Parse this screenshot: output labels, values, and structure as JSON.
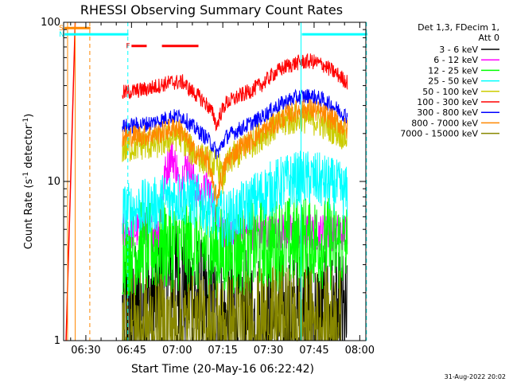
{
  "chart_data": {
    "type": "line",
    "title": "RHESSI Observing Summary Count Rates",
    "xlabel": "Start Time (20-May-16 06:22:42)",
    "ylabel_main": "Count Rate (s",
    "ylabel_sup1": "-1",
    "ylabel_mid": " detector",
    "ylabel_sup2": "-1",
    "ylabel_end": ")",
    "y_scale": "log",
    "xlim_min": [
      382.7,
      482
    ],
    "ylim": [
      1,
      100
    ],
    "x_ticks": [
      {
        "min": 390,
        "label": "06:30"
      },
      {
        "min": 405,
        "label": "06:45"
      },
      {
        "min": 420,
        "label": "07:00"
      },
      {
        "min": 435,
        "label": "07:15"
      },
      {
        "min": 450,
        "label": "07:30"
      },
      {
        "min": 465,
        "label": "07:45"
      },
      {
        "min": 480,
        "label": "08:00"
      }
    ],
    "y_ticks": [
      {
        "value": 1,
        "label": "1"
      },
      {
        "value": 10,
        "label": "10"
      },
      {
        "value": 100,
        "label": "100"
      }
    ],
    "legend_header": [
      "Det 1,3, FDecim 1,",
      "Att 0"
    ],
    "legend_position": "right",
    "series": [
      {
        "name": "3 - 6 keV",
        "color": "#000000",
        "points": [
          [
            402,
            1.4
          ],
          [
            408,
            1.5
          ],
          [
            412,
            1.8
          ],
          [
            416,
            2.2
          ],
          [
            420,
            2.4
          ],
          [
            424,
            2.0
          ],
          [
            428,
            1.6
          ],
          [
            432,
            1.4
          ],
          [
            436,
            1.3
          ],
          [
            440,
            1.4
          ],
          [
            444,
            1.3
          ],
          [
            448,
            1.35
          ],
          [
            452,
            1.3
          ],
          [
            456,
            1.3
          ],
          [
            460,
            1.35
          ],
          [
            464,
            1.3
          ],
          [
            468,
            1.3
          ],
          [
            472,
            1.3
          ],
          [
            476,
            1.3
          ]
        ],
        "noise": 0.45
      },
      {
        "name": "6 - 12 keV",
        "color": "#ff00ff",
        "points": [
          [
            402,
            4.8
          ],
          [
            406,
            4.9
          ],
          [
            410,
            5.0
          ],
          [
            414,
            5.0
          ],
          [
            416,
            11
          ],
          [
            418,
            15
          ],
          [
            420,
            12
          ],
          [
            421,
            8
          ],
          [
            422,
            12
          ],
          [
            424,
            13
          ],
          [
            426,
            9
          ],
          [
            428,
            8
          ],
          [
            430,
            9.5
          ],
          [
            432,
            7
          ],
          [
            434,
            5.5
          ],
          [
            436,
            4.2
          ],
          [
            440,
            4.6
          ],
          [
            444,
            4.8
          ],
          [
            448,
            4.8
          ],
          [
            452,
            4.8
          ],
          [
            456,
            4.8
          ],
          [
            460,
            4.8
          ],
          [
            464,
            4.8
          ],
          [
            468,
            4.8
          ],
          [
            472,
            4.8
          ],
          [
            476,
            4.8
          ]
        ],
        "noise": 0.12
      },
      {
        "name": "12 - 25 keV",
        "color": "#00ff00",
        "points": [
          [
            402,
            3.7
          ],
          [
            408,
            3.8
          ],
          [
            412,
            3.8
          ],
          [
            416,
            4.0
          ],
          [
            420,
            4.0
          ],
          [
            424,
            3.9
          ],
          [
            428,
            3.8
          ],
          [
            432,
            3.7
          ],
          [
            436,
            3.5
          ],
          [
            440,
            3.7
          ],
          [
            444,
            3.9
          ],
          [
            448,
            4.0
          ],
          [
            452,
            4.0
          ],
          [
            456,
            4.1
          ],
          [
            460,
            4.2
          ],
          [
            464,
            4.2
          ],
          [
            468,
            4.1
          ],
          [
            472,
            4.0
          ],
          [
            476,
            3.8
          ]
        ],
        "noise": 0.3
      },
      {
        "name": "25 - 50 keV",
        "color": "#00ffff",
        "points": [
          [
            402,
            6.5
          ],
          [
            408,
            6.8
          ],
          [
            412,
            7.0
          ],
          [
            416,
            7.6
          ],
          [
            420,
            8.0
          ],
          [
            424,
            7.8
          ],
          [
            428,
            7.2
          ],
          [
            432,
            6.5
          ],
          [
            435,
            5.8
          ],
          [
            438,
            6.0
          ],
          [
            442,
            6.8
          ],
          [
            446,
            7.8
          ],
          [
            450,
            8.8
          ],
          [
            454,
            9.6
          ],
          [
            458,
            10.2
          ],
          [
            462,
            10.5
          ],
          [
            466,
            10.2
          ],
          [
            470,
            9.6
          ],
          [
            474,
            8.8
          ],
          [
            476,
            8.2
          ]
        ],
        "noise": 0.18
      },
      {
        "name": "50 - 100 keV",
        "color": "#cccc00",
        "points": [
          [
            402,
            16
          ],
          [
            408,
            17
          ],
          [
            412,
            17
          ],
          [
            416,
            18
          ],
          [
            420,
            19.5
          ],
          [
            422,
            18.5
          ],
          [
            424,
            16
          ],
          [
            428,
            14
          ],
          [
            432,
            13
          ],
          [
            434,
            12
          ],
          [
            435,
            10
          ],
          [
            436,
            12
          ],
          [
            438,
            14
          ],
          [
            442,
            16
          ],
          [
            446,
            18.5
          ],
          [
            450,
            21
          ],
          [
            454,
            23
          ],
          [
            458,
            24.5
          ],
          [
            462,
            25
          ],
          [
            466,
            24
          ],
          [
            470,
            22
          ],
          [
            474,
            20
          ],
          [
            476,
            18.5
          ]
        ],
        "noise": 0.1
      },
      {
        "name": "100 - 300 keV",
        "color": "#ff0000",
        "points": [
          [
            402,
            36
          ],
          [
            406,
            37
          ],
          [
            410,
            38
          ],
          [
            414,
            40
          ],
          [
            418,
            42
          ],
          [
            422,
            42
          ],
          [
            424,
            38
          ],
          [
            428,
            33
          ],
          [
            430,
            30
          ],
          [
            432,
            26
          ],
          [
            433,
            22
          ],
          [
            434,
            26
          ],
          [
            436,
            31
          ],
          [
            440,
            34
          ],
          [
            444,
            37
          ],
          [
            448,
            41
          ],
          [
            452,
            48
          ],
          [
            456,
            53
          ],
          [
            460,
            56
          ],
          [
            464,
            57
          ],
          [
            468,
            54
          ],
          [
            472,
            48
          ],
          [
            476,
            42
          ]
        ],
        "noise": 0.05
      },
      {
        "name": "300 - 800 keV",
        "color": "#0000ff",
        "points": [
          [
            402,
            22
          ],
          [
            406,
            22.5
          ],
          [
            410,
            23
          ],
          [
            414,
            24
          ],
          [
            418,
            25.5
          ],
          [
            422,
            25.5
          ],
          [
            424,
            23
          ],
          [
            428,
            20
          ],
          [
            430,
            18.5
          ],
          [
            432,
            16.5
          ],
          [
            433,
            15
          ],
          [
            434,
            16
          ],
          [
            436,
            19
          ],
          [
            440,
            21
          ],
          [
            444,
            23
          ],
          [
            448,
            25.5
          ],
          [
            452,
            29
          ],
          [
            456,
            32
          ],
          [
            460,
            34
          ],
          [
            464,
            34.5
          ],
          [
            468,
            32.5
          ],
          [
            472,
            29
          ],
          [
            476,
            25.5
          ]
        ],
        "noise": 0.05
      },
      {
        "name": "800 - 7000 keV",
        "color": "#ff8800",
        "points": [
          [
            402,
            19
          ],
          [
            406,
            19.5
          ],
          [
            410,
            19.5
          ],
          [
            414,
            20
          ],
          [
            418,
            21.5
          ],
          [
            420,
            22
          ],
          [
            422,
            20
          ],
          [
            424,
            17
          ],
          [
            426,
            15
          ],
          [
            428,
            14.5
          ],
          [
            430,
            14
          ],
          [
            431,
            11
          ],
          [
            432,
            9
          ],
          [
            433,
            7.8
          ],
          [
            434,
            9.5
          ],
          [
            436,
            13
          ],
          [
            440,
            16
          ],
          [
            444,
            18
          ],
          [
            448,
            20.5
          ],
          [
            452,
            23
          ],
          [
            456,
            26
          ],
          [
            460,
            28
          ],
          [
            464,
            28.5
          ],
          [
            468,
            26.5
          ],
          [
            472,
            24
          ],
          [
            476,
            21
          ]
        ],
        "noise": 0.07
      },
      {
        "name": "7000 - 15000 keV",
        "color": "#888800",
        "points": [
          [
            402,
            1.2
          ],
          [
            410,
            1.2
          ],
          [
            418,
            1.2
          ],
          [
            426,
            1.2
          ],
          [
            434,
            1.2
          ],
          [
            442,
            1.25
          ],
          [
            446,
            1.3
          ],
          [
            450,
            1.3
          ],
          [
            454,
            1.35
          ],
          [
            458,
            1.3
          ],
          [
            462,
            1.3
          ],
          [
            466,
            1.3
          ],
          [
            470,
            1.3
          ],
          [
            474,
            1.3
          ]
        ],
        "noise": 0.35
      }
    ],
    "rise_segment": {
      "series": "100 - 300 keV",
      "x": [
        383.5,
        386.5
      ],
      "y": [
        1,
        100
      ]
    },
    "flags": [
      {
        "label": "S",
        "color": "#ff8800",
        "x": [
          383.0,
          391.5
        ],
        "y": 92
      },
      {
        "label": "N",
        "color": "#00ffff",
        "x": [
          383.0,
          404.0
        ],
        "y": 84
      },
      {
        "label": "",
        "color": "#00ffff",
        "x": [
          461.0,
          482.5
        ],
        "y": 84
      },
      {
        "label": "F",
        "color": "#ff0000",
        "x": [
          405.0,
          410.0
        ],
        "y": 71
      },
      {
        "label": "",
        "color": "#ff0000",
        "x": [
          415.0,
          427.0
        ],
        "y": 71
      }
    ],
    "vlines": [
      {
        "x": 384.0,
        "color": "#ff8800",
        "style": "solid"
      },
      {
        "x": 386.5,
        "color": "#ff8800",
        "style": "solid"
      },
      {
        "x": 391.3,
        "color": "#ff8800",
        "style": "dashed"
      },
      {
        "x": 403.8,
        "color": "#00ffff",
        "style": "dashed"
      },
      {
        "x": 460.7,
        "color": "#00ffff",
        "style": "solid"
      },
      {
        "x": 482.2,
        "color": "#00ffff",
        "style": "dashed"
      }
    ],
    "grid": false
  },
  "footer": {
    "timestamp": "31-Aug-2022 20:02"
  }
}
